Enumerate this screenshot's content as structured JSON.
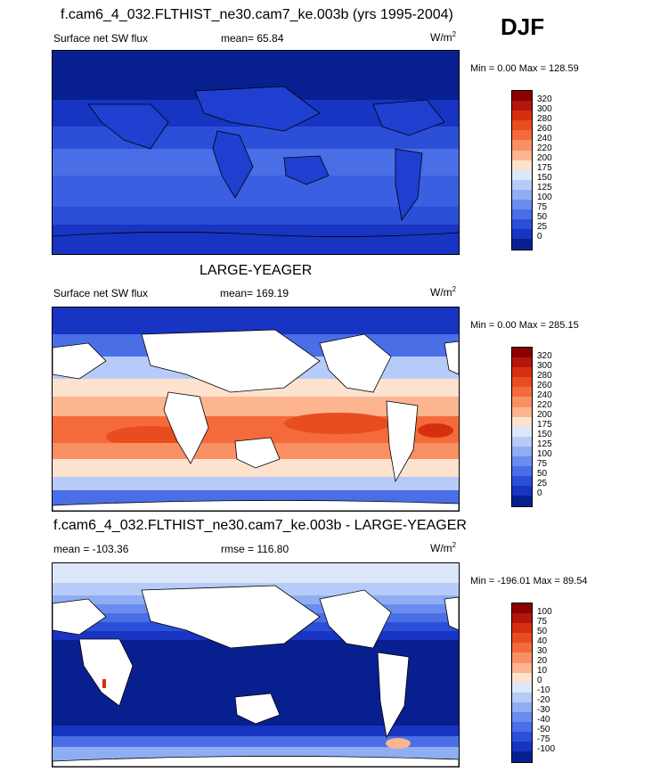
{
  "season": "DJF",
  "panel1": {
    "title": "f.cam6_4_032.FLTHIST_ne30.cam7_ke.003b (yrs 1995-2004)",
    "variable": "Surface net SW flux",
    "mean": "mean=  65.84",
    "units": "W/m",
    "units_exp": "2",
    "minmax": "Min =    0.00 Max = 128.59"
  },
  "panel2": {
    "title": "LARGE-YEAGER",
    "variable": "Surface net SW flux",
    "mean": "mean= 169.19",
    "units": "W/m",
    "units_exp": "2",
    "minmax": "Min =    0.00 Max = 285.15"
  },
  "panel3": {
    "title": "f.cam6_4_032.FLTHIST_ne30.cam7_ke.003b - LARGE-YEAGER",
    "mean": "mean = -103.36",
    "rmse": "rmse = 116.80",
    "units": "W/m",
    "units_exp": "2",
    "minmax": "Min = -196.01 Max =  89.54"
  },
  "colorbar_abs": {
    "labels": [
      "320",
      "300",
      "280",
      "260",
      "240",
      "220",
      "200",
      "175",
      "150",
      "125",
      "100",
      "75",
      "50",
      "25",
      "0"
    ],
    "colors": [
      "#8b0000",
      "#b3160d",
      "#d4300f",
      "#e84d1f",
      "#f46a3a",
      "#f99064",
      "#fcb58f",
      "#fde2ce",
      "#dde7fa",
      "#b6cbf7",
      "#8fadf3",
      "#6a8cee",
      "#4a6ee6",
      "#2c4fd9",
      "#1834c2",
      "#08208f"
    ]
  },
  "colorbar_diff": {
    "labels": [
      "100",
      "75",
      "50",
      "40",
      "30",
      "20",
      "10",
      "0",
      "-10",
      "-20",
      "-30",
      "-40",
      "-50",
      "-75",
      "-100"
    ],
    "colors": [
      "#8b0000",
      "#b3160d",
      "#d4300f",
      "#e84d1f",
      "#f46a3a",
      "#f99064",
      "#fcb58f",
      "#fde2ce",
      "#dde7fa",
      "#b6cbf7",
      "#8fadf3",
      "#6a8cee",
      "#4a6ee6",
      "#2c4fd9",
      "#1834c2",
      "#08208f"
    ]
  }
}
